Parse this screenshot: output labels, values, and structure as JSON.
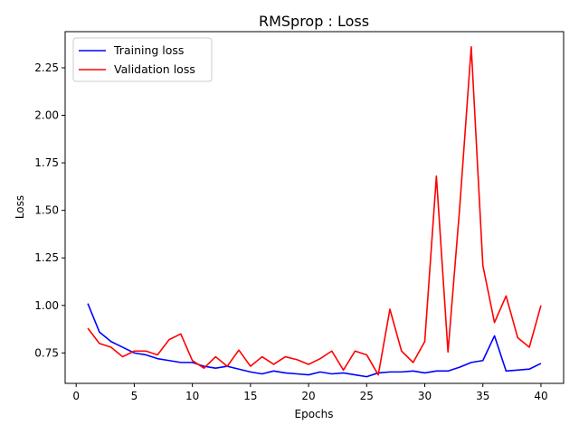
{
  "chart_data": {
    "type": "line",
    "title": "RMSprop : Loss",
    "xlabel": "Epochs",
    "ylabel": "Loss",
    "xlim": [
      -0.95,
      41.95
    ],
    "ylim": [
      0.59,
      2.44
    ],
    "xticks": [
      0,
      5,
      10,
      15,
      20,
      25,
      30,
      35,
      40
    ],
    "yticks": [
      0.75,
      1.0,
      1.25,
      1.5,
      1.75,
      2.0,
      2.25
    ],
    "ytick_labels": [
      "0.75",
      "1.00",
      "1.25",
      "1.50",
      "1.75",
      "2.00",
      "2.25"
    ],
    "grid": false,
    "legend_position": "upper-left",
    "x": [
      1,
      2,
      3,
      4,
      5,
      6,
      7,
      8,
      9,
      10,
      11,
      12,
      13,
      14,
      15,
      16,
      17,
      18,
      19,
      20,
      21,
      22,
      23,
      24,
      25,
      26,
      27,
      28,
      29,
      30,
      31,
      32,
      33,
      34,
      35,
      36,
      37,
      38,
      39,
      40
    ],
    "series": [
      {
        "name": "Training loss",
        "color": "#0000ff",
        "values": [
          1.01,
          0.86,
          0.81,
          0.78,
          0.75,
          0.74,
          0.72,
          0.71,
          0.7,
          0.7,
          0.68,
          0.67,
          0.68,
          0.665,
          0.65,
          0.64,
          0.655,
          0.645,
          0.64,
          0.635,
          0.65,
          0.64,
          0.645,
          0.635,
          0.625,
          0.645,
          0.65,
          0.65,
          0.655,
          0.645,
          0.655,
          0.655,
          0.675,
          0.7,
          0.71,
          0.84,
          0.655,
          0.66,
          0.665,
          0.695
        ]
      },
      {
        "name": "Validation loss",
        "color": "#ff0000",
        "values": [
          0.88,
          0.8,
          0.78,
          0.73,
          0.76,
          0.76,
          0.74,
          0.82,
          0.85,
          0.71,
          0.67,
          0.73,
          0.68,
          0.765,
          0.68,
          0.73,
          0.69,
          0.73,
          0.715,
          0.69,
          0.72,
          0.76,
          0.66,
          0.76,
          0.74,
          0.635,
          0.98,
          0.76,
          0.7,
          0.81,
          1.68,
          0.755,
          1.51,
          2.36,
          1.21,
          0.91,
          1.05,
          0.83,
          0.78,
          1.0
        ]
      }
    ]
  }
}
